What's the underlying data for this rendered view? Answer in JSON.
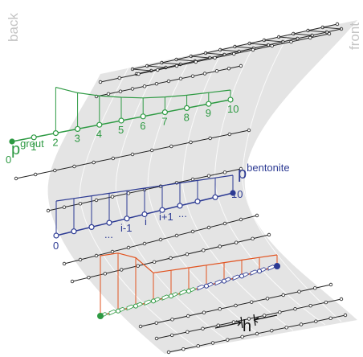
{
  "labels": {
    "back": "back",
    "front": "front"
  },
  "grout": {
    "symbol": "p",
    "superscript": "grout",
    "node_labels": [
      0,
      1,
      2,
      3,
      4,
      5,
      6,
      7,
      8,
      9,
      10
    ]
  },
  "bentonite": {
    "symbol": "p",
    "superscript": "bentonite",
    "first_label": 0,
    "last_label": 10,
    "node_labels": [
      "...",
      "i-1",
      "i",
      "i+1",
      "..."
    ]
  },
  "spacing": {
    "symbol": "h"
  }
}
